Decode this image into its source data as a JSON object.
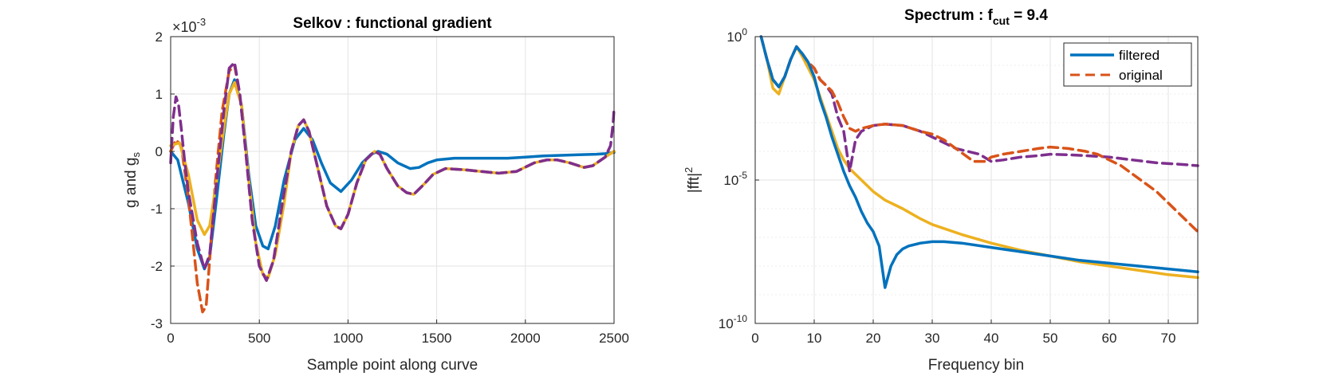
{
  "chart_data": [
    {
      "type": "line",
      "title": "Selkov : functional gradient",
      "xlabel": "Sample point along curve",
      "ylabel": {
        "base": "g and g",
        "sub": "s"
      },
      "xlim": [
        0,
        2500
      ],
      "ylim": [
        -3,
        2
      ],
      "y_multiplier": {
        "prefix": "×10",
        "exponent": "-3"
      },
      "xticks": [
        0,
        500,
        1000,
        1500,
        2000,
        2500
      ],
      "yticks": [
        -3,
        -2,
        -1,
        0,
        1,
        2
      ],
      "grid": true,
      "series": [
        {
          "color": "#0072BD",
          "dash": "solid",
          "x": [
            0,
            40,
            100,
            150,
            190,
            220,
            260,
            300,
            330,
            360,
            400,
            440,
            480,
            520,
            550,
            590,
            640,
            700,
            750,
            800,
            850,
            900,
            960,
            1020,
            1080,
            1130,
            1170,
            1220,
            1280,
            1350,
            1400,
            1450,
            1500,
            1600,
            1700,
            1800,
            1900,
            2000,
            2100,
            2200,
            2300,
            2400,
            2450,
            2500
          ],
          "y": [
            0,
            -0.15,
            -0.9,
            -1.7,
            -2.05,
            -1.85,
            -0.8,
            0.3,
            1.0,
            1.25,
            0.8,
            -0.4,
            -1.3,
            -1.65,
            -1.7,
            -1.3,
            -0.5,
            0.2,
            0.4,
            0.2,
            -0.2,
            -0.55,
            -0.7,
            -0.5,
            -0.2,
            -0.05,
            0.0,
            -0.05,
            -0.2,
            -0.3,
            -0.28,
            -0.2,
            -0.15,
            -0.12,
            -0.12,
            -0.12,
            -0.12,
            -0.1,
            -0.08,
            -0.07,
            -0.06,
            -0.05,
            -0.04,
            -0.02
          ]
        },
        {
          "color": "#D95319",
          "dash": "dashed",
          "x": [
            0,
            30,
            60,
            100,
            150,
            180,
            200,
            220,
            250,
            290,
            330,
            360,
            390,
            420,
            460,
            500,
            540,
            580,
            630,
            680,
            720,
            750,
            780,
            830,
            880,
            930,
            960,
            1000,
            1050,
            1100,
            1150,
            1180,
            1220,
            1280,
            1330,
            1370,
            1420,
            1480,
            1550,
            1650,
            1750,
            1850,
            1950,
            2050,
            2120,
            2180,
            2250,
            2330,
            2380,
            2450,
            2500
          ],
          "y": [
            0,
            0.2,
            0.1,
            -0.8,
            -2.3,
            -2.8,
            -2.7,
            -1.9,
            -0.6,
            0.7,
            1.4,
            1.5,
            1.0,
            0.1,
            -1.2,
            -2.0,
            -2.25,
            -1.9,
            -0.9,
            0.0,
            0.45,
            0.55,
            0.35,
            -0.3,
            -0.95,
            -1.3,
            -1.35,
            -1.1,
            -0.55,
            -0.15,
            0.0,
            -0.05,
            -0.3,
            -0.6,
            -0.72,
            -0.75,
            -0.6,
            -0.4,
            -0.3,
            -0.32,
            -0.35,
            -0.38,
            -0.35,
            -0.2,
            -0.15,
            -0.15,
            -0.2,
            -0.28,
            -0.25,
            -0.1,
            0.0
          ]
        },
        {
          "color": "#EDB120",
          "dash": "solid",
          "x": [
            0,
            50,
            100,
            150,
            190,
            220,
            260,
            300,
            330,
            360,
            400,
            440,
            480,
            520,
            550,
            590,
            640,
            680,
            720,
            750,
            780,
            830,
            880,
            930,
            960,
            1000,
            1050,
            1100,
            1150,
            1180,
            1220,
            1280,
            1330,
            1370,
            1420,
            1480,
            1550,
            1650,
            1750,
            1850,
            1950,
            2050,
            2120,
            2180,
            2250,
            2330,
            2380,
            2450,
            2500
          ],
          "y": [
            0.1,
            0.15,
            -0.4,
            -1.2,
            -1.45,
            -1.3,
            -0.5,
            0.4,
            1.0,
            1.2,
            0.8,
            -0.5,
            -1.6,
            -2.15,
            -2.2,
            -1.8,
            -0.9,
            0.0,
            0.45,
            0.55,
            0.35,
            -0.3,
            -0.95,
            -1.3,
            -1.35,
            -1.1,
            -0.55,
            -0.15,
            0.0,
            -0.05,
            -0.3,
            -0.6,
            -0.72,
            -0.75,
            -0.6,
            -0.4,
            -0.3,
            -0.32,
            -0.35,
            -0.38,
            -0.35,
            -0.2,
            -0.15,
            -0.15,
            -0.2,
            -0.28,
            -0.25,
            -0.1,
            0.0
          ]
        },
        {
          "color": "#7E2F8E",
          "dash": "dashed",
          "x": [
            0,
            15,
            30,
            45,
            60,
            80,
            100,
            150,
            190,
            220,
            260,
            300,
            330,
            360,
            390,
            420,
            460,
            500,
            540,
            580,
            630,
            680,
            720,
            750,
            780,
            830,
            880,
            930,
            960,
            1000,
            1050,
            1100,
            1150,
            1180,
            1220,
            1280,
            1330,
            1370,
            1420,
            1480,
            1550,
            1650,
            1750,
            1850,
            1950,
            2050,
            2120,
            2180,
            2250,
            2330,
            2380,
            2450,
            2480,
            2495,
            2500
          ],
          "y": [
            -0.2,
            0.6,
            0.95,
            0.8,
            0.4,
            -0.2,
            -0.7,
            -1.6,
            -2.05,
            -1.8,
            -0.5,
            0.7,
            1.45,
            1.55,
            1.0,
            0.1,
            -1.2,
            -2.0,
            -2.25,
            -1.9,
            -0.9,
            0.0,
            0.45,
            0.55,
            0.35,
            -0.3,
            -0.95,
            -1.3,
            -1.35,
            -1.1,
            -0.55,
            -0.15,
            0.0,
            -0.05,
            -0.3,
            -0.6,
            -0.72,
            -0.75,
            -0.6,
            -0.4,
            -0.3,
            -0.32,
            -0.35,
            -0.38,
            -0.35,
            -0.2,
            -0.15,
            -0.15,
            -0.2,
            -0.28,
            -0.25,
            -0.1,
            0.1,
            0.5,
            0.75
          ]
        }
      ]
    },
    {
      "type": "line",
      "title": {
        "base": "Spectrum : f",
        "sub": "cut",
        "suffix": " = 9.4"
      },
      "xlabel": "Frequency bin",
      "ylabel": {
        "base": "|fft|",
        "sup": "2"
      },
      "xlim": [
        0,
        75
      ],
      "ylim_exponent": [
        -10,
        0
      ],
      "yscale": "log",
      "xticks": [
        0,
        10,
        20,
        30,
        40,
        50,
        60,
        70
      ],
      "yticks": [
        {
          "exp": -10,
          "label_base": "10",
          "label_sup": "-10"
        },
        {
          "exp": -5,
          "label_base": "10",
          "label_sup": "-5"
        },
        {
          "exp": 0,
          "label_base": "10",
          "label_sup": "0"
        }
      ],
      "grid": true,
      "legend": {
        "location": "top-right",
        "entries": [
          {
            "label": "filtered",
            "color": "#0072BD",
            "dash": "solid"
          },
          {
            "label": "original",
            "color": "#D95319",
            "dash": "dashed"
          }
        ]
      },
      "series": [
        {
          "name": "filtered",
          "color": "#0072BD",
          "dash": "solid",
          "x": [
            1,
            2,
            3,
            4,
            5,
            6,
            7,
            8,
            9,
            10,
            11,
            12,
            13,
            14,
            15,
            16,
            17,
            18,
            19,
            20,
            21,
            22,
            23,
            24,
            25,
            26,
            28,
            30,
            32,
            35,
            40,
            45,
            50,
            55,
            60,
            65,
            70,
            75
          ],
          "y_log10": [
            0,
            -0.8,
            -1.5,
            -1.75,
            -1.4,
            -0.8,
            -0.35,
            -0.6,
            -0.9,
            -1.4,
            -2.2,
            -2.8,
            -3.5,
            -4.1,
            -4.7,
            -5.2,
            -5.6,
            -6.1,
            -6.5,
            -6.8,
            -7.3,
            -8.75,
            -8.0,
            -7.6,
            -7.4,
            -7.3,
            -7.2,
            -7.15,
            -7.15,
            -7.2,
            -7.35,
            -7.5,
            -7.65,
            -7.8,
            -7.9,
            -8.0,
            -8.1,
            -8.2
          ]
        },
        {
          "name": "original",
          "color": "#D95319",
          "dash": "dashed",
          "x": [
            1,
            2,
            3,
            4,
            5,
            6,
            7,
            8,
            9,
            10,
            11,
            12,
            13,
            14,
            15,
            16,
            17,
            18,
            20,
            22,
            25,
            28,
            30,
            32,
            34,
            36,
            37,
            38,
            39,
            40,
            42,
            45,
            48,
            50,
            53,
            56,
            58,
            60,
            62,
            64,
            66,
            68,
            70,
            72,
            74,
            75
          ],
          "y_log10": [
            0,
            -0.8,
            -1.5,
            -1.75,
            -1.4,
            -0.8,
            -0.35,
            -0.6,
            -0.9,
            -1.1,
            -1.5,
            -1.7,
            -1.9,
            -2.3,
            -2.8,
            -3.2,
            -3.3,
            -3.2,
            -3.1,
            -3.05,
            -3.1,
            -3.3,
            -3.4,
            -3.6,
            -3.9,
            -4.2,
            -4.35,
            -4.35,
            -4.35,
            -4.2,
            -4.1,
            -4.0,
            -3.9,
            -3.85,
            -3.9,
            -4.0,
            -4.1,
            -4.3,
            -4.5,
            -4.8,
            -5.1,
            -5.4,
            -5.8,
            -6.2,
            -6.6,
            -6.8
          ]
        },
        {
          "color": "#EDB120",
          "dash": "solid",
          "x": [
            1,
            2,
            3,
            4,
            5,
            6,
            7,
            8,
            9,
            10,
            11,
            12,
            13,
            14,
            15,
            16,
            18,
            20,
            22,
            25,
            28,
            30,
            35,
            40,
            45,
            50,
            55,
            60,
            65,
            70,
            75
          ],
          "y_log10": [
            0,
            -0.8,
            -1.8,
            -2.0,
            -1.4,
            -0.8,
            -0.35,
            -0.7,
            -1.1,
            -1.5,
            -2.1,
            -2.7,
            -3.3,
            -3.9,
            -4.3,
            -4.6,
            -5.0,
            -5.4,
            -5.7,
            -6.0,
            -6.35,
            -6.55,
            -6.9,
            -7.2,
            -7.45,
            -7.65,
            -7.85,
            -8.0,
            -8.15,
            -8.3,
            -8.4
          ]
        },
        {
          "color": "#7E2F8E",
          "dash": "dashed",
          "x": [
            1,
            2,
            3,
            4,
            5,
            6,
            7,
            8,
            9,
            10,
            11,
            12,
            13,
            14,
            15,
            16,
            17,
            18,
            20,
            22,
            25,
            28,
            30,
            32,
            34,
            36,
            38,
            40,
            42,
            45,
            48,
            50,
            53,
            56,
            60,
            64,
            68,
            72,
            75
          ],
          "y_log10": [
            0,
            -0.8,
            -1.5,
            -1.75,
            -1.4,
            -0.8,
            -0.35,
            -0.6,
            -0.9,
            -1.1,
            -1.5,
            -1.7,
            -2.0,
            -2.8,
            -3.3,
            -4.7,
            -3.6,
            -3.3,
            -3.1,
            -3.05,
            -3.1,
            -3.3,
            -3.5,
            -3.7,
            -3.9,
            -4.0,
            -4.1,
            -4.35,
            -4.3,
            -4.2,
            -4.15,
            -4.1,
            -4.12,
            -4.15,
            -4.2,
            -4.3,
            -4.4,
            -4.45,
            -4.5
          ]
        }
      ]
    }
  ]
}
